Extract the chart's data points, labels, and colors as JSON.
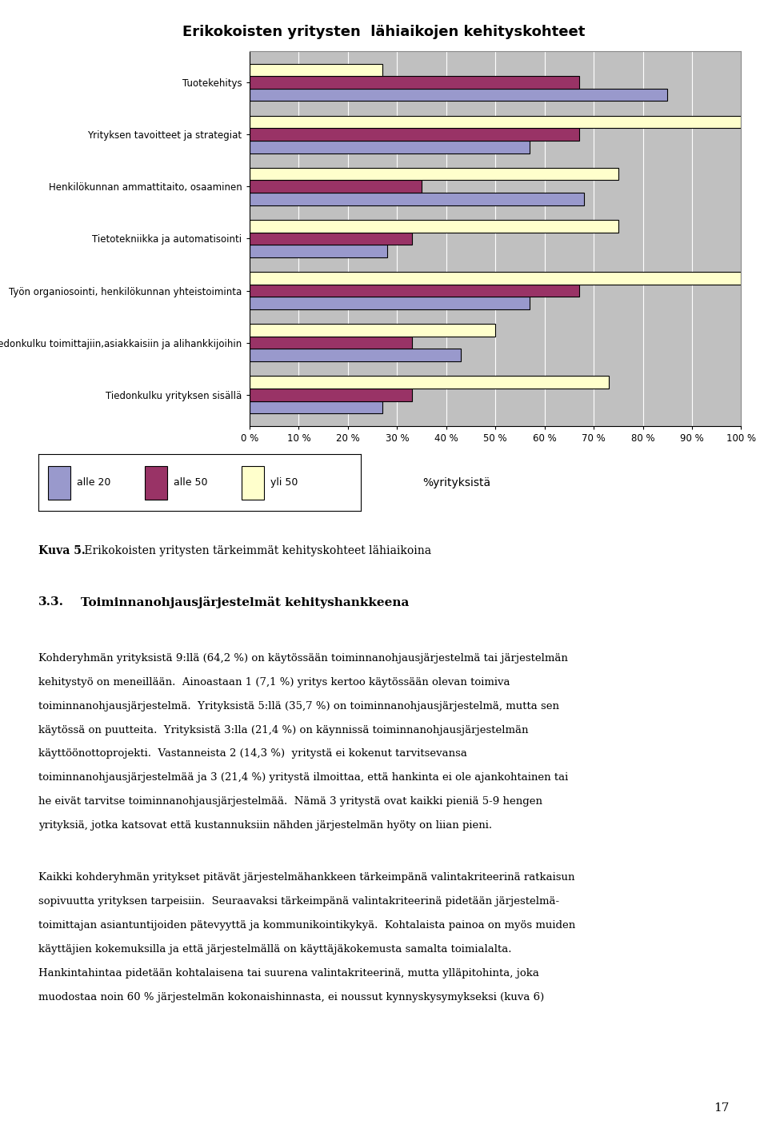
{
  "title": "Erikokoisten yritysten  lähiaikojen kehityskohteet",
  "categories": [
    "Tuotekehitys",
    "Yrityksen tavoitteet ja strategiat",
    "Henkilökunnan ammattitaito, osaaminen",
    "Tietotekniikka ja automatisointi",
    "Työn organiosointi, henkilökunnan yhteistoiminta",
    "Tiedonkulku toimittajiin,asiakkaisiin ja alihankkijoihin",
    "Tiedonkulku yrityksen sisällä"
  ],
  "series": {
    "alle 20": [
      85,
      57,
      68,
      28,
      57,
      43,
      27
    ],
    "alle 50": [
      67,
      67,
      35,
      33,
      67,
      33,
      33
    ],
    "yli 50": [
      27,
      100,
      75,
      75,
      100,
      50,
      73
    ]
  },
  "colors": {
    "alle 20": "#9999CC",
    "alle 50": "#993366",
    "yli 50": "#FFFFCC"
  },
  "xlabel": "%yrityksistä",
  "xlim": [
    0,
    100
  ],
  "xticks": [
    0,
    10,
    20,
    30,
    40,
    50,
    60,
    70,
    80,
    90,
    100
  ],
  "xtick_labels": [
    "0 %",
    "10 %",
    "20 %",
    "30 %",
    "40 %",
    "50 %",
    "60 %",
    "70 %",
    "80 %",
    "90 %",
    "100 %"
  ],
  "chart_bg": "#C0C0C0",
  "bar_edge_color": "#000000",
  "bar_edge_width": 0.8,
  "title_fontsize": 13,
  "axis_fontsize": 8.5,
  "page_number": "17",
  "caption_bold": "Kuva 5.",
  "caption_rest": " Erikokoisten yritysten tärkeimmät kehityskohteet lähiaikoina",
  "subtitle": "3.3.  Toiminnanohjausjärjestelmät kehityshankkeena",
  "body_para1": [
    "Kohderyhmän yrityksistä 9:llä (64,2 %) on käytössään toiminnanohjausjärjestelmä tai järjestelmän kehitystyö on meneillään.",
    "Ainoastaan 1 (7,1 %) yritys kertoo käytössään olevan toimiva toiminnanohjausjärjestelmä. Yrityksistä 5:llä (35,7 %) on",
    "toiminnanohjausjärjestelmä, mutta sen käytössä on puutteita. Yrityksistä 3:lla (21,4 %) on käynnissä toiminnanohjausjärjestelmän",
    "käyttöönottoprojekti. Vastanneista 2 (14,3 %)  yritystä ei kokenut tarvitsevansa toiminnanohjausjärjestelmää ja 3 (21,4 %)",
    "yritystä ilmoittaa, että hankinta ei ole ajankohtainen tai he eivät tarvitse toiminnanohjausjärjestelmää. Nämä 3 yritystä ovat",
    "kaikki pieniä 5-9 hengen yrityksiä, jotka katsovat että kustannuksiin nähden järjestelmän hyöty on liian pieni."
  ],
  "body_para2": [
    "Kaikki kohderyhmän yritykset pitävät järjestelmähankkeen tärkeimpänä valintakriteerinä ratkaisun sopivuutta yrityksen",
    "tarpeisiin. Seuraavaksi tärkeimpänä valintakriteerinä pidetään järjestelmätoimittajan asiantuntijoiden pätevyyttä ja",
    "kommunikointikykyä. Kohtalaista painoa on myös muiden käyttäjien kokemuksilla ja että järjestelmällä on käyttäjäkokemusta",
    "samalta toimialalta. Hankintahintaa pidetään kohtalaisena tai suurena valintakriteerinä, mutta ylläpitohinta, joka muodostaa",
    "noin 60 % järjestelmän kokonaishinnasta, ei noussut kynnyskysymykseksi (kuva 6)"
  ]
}
